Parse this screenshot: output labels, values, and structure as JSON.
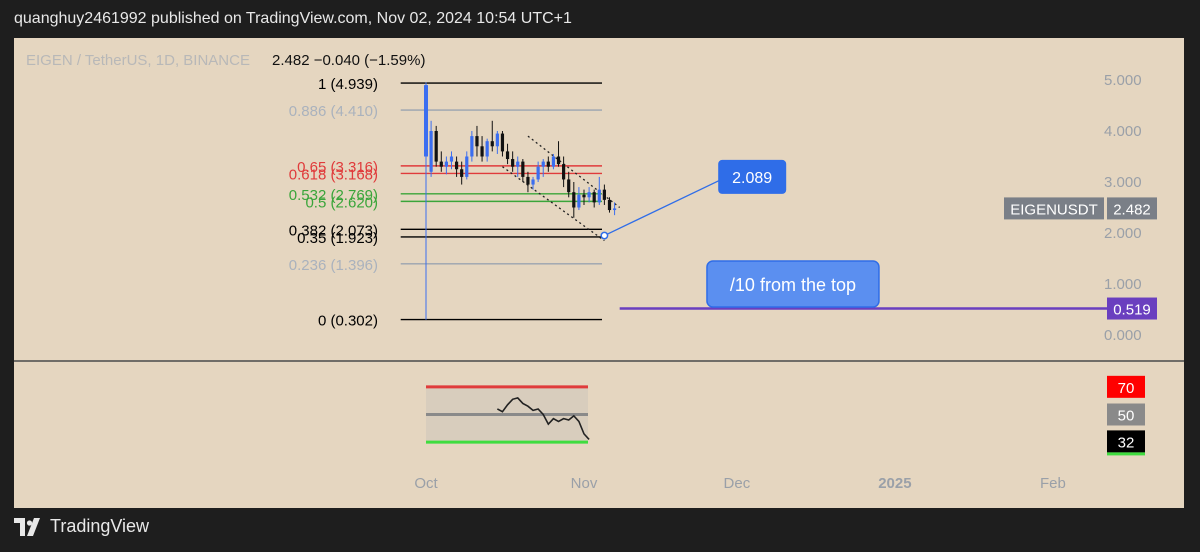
{
  "header": {
    "text": "quanghuy2461992 published on TradingView.com, Nov 02, 2024 10:54 UTC+1"
  },
  "footer": {
    "brand": "TradingView",
    "logo_icon": "tradingview-logo-icon"
  },
  "chart_data": {
    "type": "candlestick",
    "symbol_line": "EIGEN / TetherUS, 1D, BINANCE",
    "price_line": "2.482 −0.040 (−1.59%)",
    "y_ticks": [
      "5.000",
      "4.000",
      "3.000",
      "2.000",
      "1.000",
      "0.000"
    ],
    "y_tick_values": [
      5,
      4,
      3,
      2,
      1,
      0
    ],
    "ylim": [
      -0.1,
      5.6
    ],
    "x_ticks": [
      {
        "label": "Oct",
        "day": 0
      },
      {
        "label": "Nov",
        "day": 31
      },
      {
        "label": "Dec",
        "day": 61
      },
      {
        "label": "2025",
        "day": 92
      },
      {
        "label": "Feb",
        "day": 123
      }
    ],
    "xlim_days": [
      -20,
      138
    ],
    "price_label": {
      "symbol": "EIGENUSDT",
      "value": "2.482",
      "price": 2.482
    },
    "fib_levels": [
      {
        "label": "1 (4.939)",
        "price": 4.939,
        "color": "#000000",
        "line": "#000000"
      },
      {
        "label": "0.886 (4.410)",
        "price": 4.41,
        "color": "#aab2bd",
        "line": "#9aa4b0"
      },
      {
        "label": "0.65 (3.316)",
        "price": 3.316,
        "color": "#e03b3b",
        "line": "#e03b3b"
      },
      {
        "label": "0.618 (3.168)",
        "price": 3.168,
        "color": "#e03b3b",
        "line": "#e03b3b"
      },
      {
        "label": "0.532 (2.769)",
        "price": 2.769,
        "color": "#3aa53a",
        "line": "#3aa53a"
      },
      {
        "label": "0.5 (2.620)",
        "price": 2.62,
        "color": "#3aa53a",
        "line": "#3aa53a"
      },
      {
        "label": "0.382 (2.073)",
        "price": 2.073,
        "color": "#000000",
        "line": "#000000"
      },
      {
        "label": "0.35 (1.923)",
        "price": 1.923,
        "color": "#000000",
        "line": "#000000"
      },
      {
        "label": "0.236 (1.396)",
        "price": 1.396,
        "color": "#aab2bd",
        "line": "#9aa4b0"
      },
      {
        "label": "0 (0.302)",
        "price": 0.302,
        "color": "#000000",
        "line": "#000000"
      }
    ],
    "fib_day_range": [
      -3,
      14
    ],
    "candles": [
      {
        "d": 0,
        "o": 4.9,
        "h": 4.95,
        "l": 0.3,
        "c": 3.5
      },
      {
        "d": 1,
        "o": 3.2,
        "h": 4.2,
        "l": 3.1,
        "c": 4.0
      },
      {
        "d": 2,
        "o": 4.0,
        "h": 4.1,
        "l": 3.3,
        "c": 3.4
      },
      {
        "d": 3,
        "o": 3.4,
        "h": 3.6,
        "l": 3.2,
        "c": 3.3
      },
      {
        "d": 4,
        "o": 3.3,
        "h": 3.5,
        "l": 3.15,
        "c": 3.4
      },
      {
        "d": 5,
        "o": 3.4,
        "h": 3.6,
        "l": 3.25,
        "c": 3.5
      },
      {
        "d": 6,
        "o": 3.4,
        "h": 3.5,
        "l": 3.1,
        "c": 3.25
      },
      {
        "d": 7,
        "o": 3.25,
        "h": 3.4,
        "l": 2.95,
        "c": 3.1
      },
      {
        "d": 8,
        "o": 3.1,
        "h": 3.6,
        "l": 3.05,
        "c": 3.5
      },
      {
        "d": 9,
        "o": 3.5,
        "h": 4.0,
        "l": 3.4,
        "c": 3.9
      },
      {
        "d": 10,
        "o": 3.9,
        "h": 4.1,
        "l": 3.5,
        "c": 3.7
      },
      {
        "d": 11,
        "o": 3.7,
        "h": 3.9,
        "l": 3.4,
        "c": 3.5
      },
      {
        "d": 12,
        "o": 3.5,
        "h": 3.85,
        "l": 3.4,
        "c": 3.8
      },
      {
        "d": 13,
        "o": 3.8,
        "h": 4.2,
        "l": 3.6,
        "c": 3.7
      },
      {
        "d": 14,
        "o": 3.7,
        "h": 4.0,
        "l": 3.55,
        "c": 3.95
      },
      {
        "d": 15,
        "o": 3.95,
        "h": 4.0,
        "l": 3.5,
        "c": 3.6
      },
      {
        "d": 16,
        "o": 3.6,
        "h": 3.75,
        "l": 3.35,
        "c": 3.45
      },
      {
        "d": 17,
        "o": 3.45,
        "h": 3.6,
        "l": 3.2,
        "c": 3.3
      },
      {
        "d": 18,
        "o": 3.3,
        "h": 3.5,
        "l": 3.1,
        "c": 3.4
      },
      {
        "d": 19,
        "o": 3.4,
        "h": 3.45,
        "l": 3.0,
        "c": 3.1
      },
      {
        "d": 20,
        "o": 3.1,
        "h": 3.2,
        "l": 2.8,
        "c": 2.95
      },
      {
        "d": 21,
        "o": 2.95,
        "h": 3.1,
        "l": 2.85,
        "c": 3.05
      },
      {
        "d": 22,
        "o": 3.05,
        "h": 3.4,
        "l": 3.0,
        "c": 3.3
      },
      {
        "d": 23,
        "o": 3.3,
        "h": 3.45,
        "l": 3.1,
        "c": 3.4
      },
      {
        "d": 24,
        "o": 3.4,
        "h": 3.5,
        "l": 3.2,
        "c": 3.3
      },
      {
        "d": 25,
        "o": 3.3,
        "h": 3.55,
        "l": 3.25,
        "c": 3.5
      },
      {
        "d": 26,
        "o": 3.5,
        "h": 3.8,
        "l": 3.3,
        "c": 3.35
      },
      {
        "d": 27,
        "o": 3.35,
        "h": 3.5,
        "l": 2.9,
        "c": 3.05
      },
      {
        "d": 28,
        "o": 3.05,
        "h": 3.2,
        "l": 2.7,
        "c": 2.8
      },
      {
        "d": 29,
        "o": 2.8,
        "h": 3.0,
        "l": 2.3,
        "c": 2.5
      },
      {
        "d": 30,
        "o": 2.5,
        "h": 2.9,
        "l": 2.45,
        "c": 2.75
      },
      {
        "d": 31,
        "o": 2.75,
        "h": 2.85,
        "l": 2.55,
        "c": 2.7
      },
      {
        "d": 32,
        "o": 2.7,
        "h": 2.9,
        "l": 2.6,
        "c": 2.8
      },
      {
        "d": 33,
        "o": 2.8,
        "h": 2.85,
        "l": 2.5,
        "c": 2.6
      },
      {
        "d": 34,
        "o": 2.6,
        "h": 3.1,
        "l": 2.55,
        "c": 2.85
      },
      {
        "d": 35,
        "o": 2.85,
        "h": 2.95,
        "l": 2.55,
        "c": 2.65
      },
      {
        "d": 36,
        "o": 2.65,
        "h": 2.7,
        "l": 2.4,
        "c": 2.45
      },
      {
        "d": 37,
        "o": 2.45,
        "h": 2.6,
        "l": 2.35,
        "c": 2.482
      }
    ],
    "channel": {
      "upper": [
        [
          20,
          3.9
        ],
        [
          38,
          2.5
        ]
      ],
      "lower": [
        [
          15,
          3.3
        ],
        [
          35,
          1.85
        ]
      ]
    },
    "target_line": {
      "from": [
        35,
        1.95
      ],
      "to": [
        59,
        3.1
      ]
    },
    "callout_price": {
      "text": "2.089",
      "day": 64,
      "price": 3.1
    },
    "callout_note": {
      "text": "/10 from the top",
      "day": 72,
      "price": 0.98
    },
    "target_level": {
      "price": 0.519,
      "label": "0.519",
      "from_day": 38,
      "color": "#6a3fbf"
    },
    "rsi": {
      "levels": [
        {
          "value": 70,
          "label": "70",
          "color": "#e03b3b"
        },
        {
          "value": 50,
          "label": "50",
          "color": "#8a8a8a"
        },
        {
          "value": 30,
          "color": "#3fdc3f"
        }
      ],
      "current": {
        "value": 32,
        "label": "32"
      },
      "ylim": [
        20,
        80
      ],
      "band_day_range": [
        0,
        31
      ],
      "points": [
        [
          14,
          54
        ],
        [
          15,
          52
        ],
        [
          16,
          57
        ],
        [
          17,
          61
        ],
        [
          18,
          62
        ],
        [
          19,
          58
        ],
        [
          20,
          56
        ],
        [
          21,
          53
        ],
        [
          22,
          54
        ],
        [
          23,
          50
        ],
        [
          24,
          43
        ],
        [
          25,
          47
        ],
        [
          26,
          45
        ],
        [
          27,
          47
        ],
        [
          28,
          46
        ],
        [
          29,
          49
        ],
        [
          30,
          45
        ],
        [
          31,
          36
        ],
        [
          32,
          32
        ]
      ]
    }
  }
}
